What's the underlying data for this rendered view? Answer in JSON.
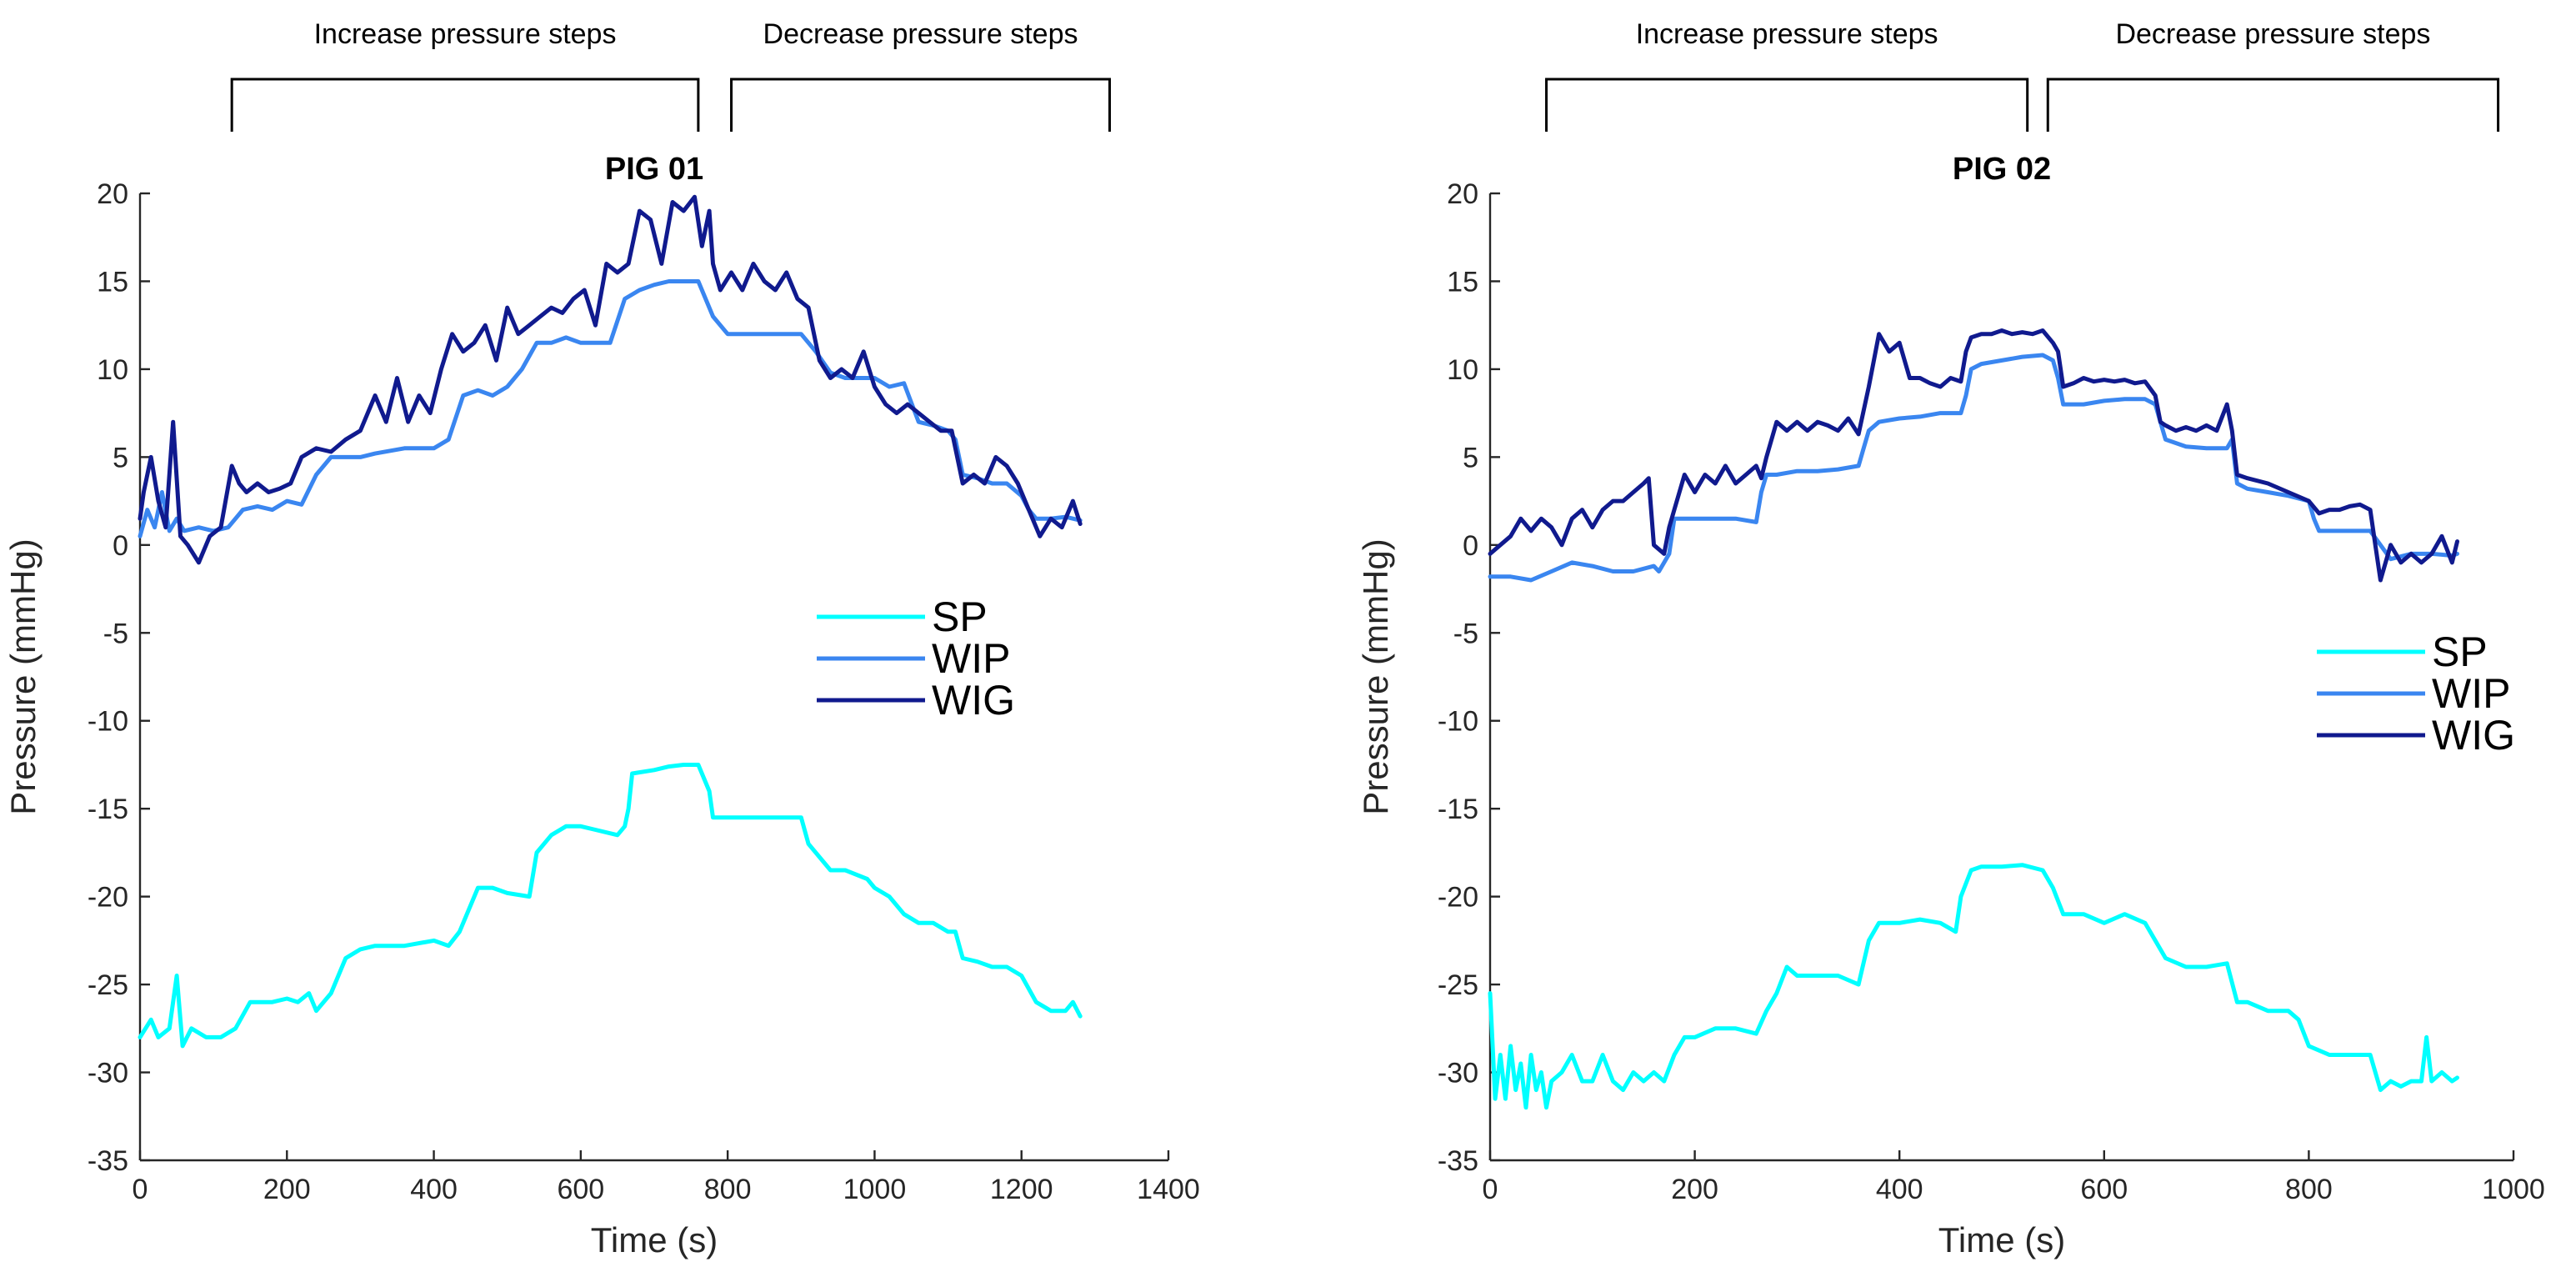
{
  "colors": {
    "SP": "#00FFFF",
    "WIP": "#3A86F0",
    "WIG": "#101A8E",
    "axis": "#262626"
  },
  "chart_data": [
    {
      "type": "line",
      "title": "PIG 01",
      "xlabel": "Time (s)",
      "ylabel": "Pressure (mmHg)",
      "xlim": [
        0,
        1400
      ],
      "ylim": [
        -35,
        20
      ],
      "xticks": [
        0,
        200,
        400,
        600,
        800,
        1000,
        1200,
        1400
      ],
      "yticks": [
        -35,
        -30,
        -25,
        -20,
        -15,
        -10,
        -5,
        0,
        5,
        10,
        15,
        20
      ],
      "xtick_labels": [
        "0",
        "200",
        "400",
        "600",
        "800",
        "1000",
        "1200",
        "1400"
      ],
      "ytick_labels": [
        "-35",
        "-30",
        "-25",
        "-20",
        "-15",
        "-10",
        "-5",
        "0",
        "5",
        "10",
        "15",
        "20"
      ],
      "brackets": [
        {
          "label": "Increase pressure steps",
          "start": 125,
          "end": 760
        },
        {
          "label": "Decrease pressure steps",
          "start": 805,
          "end": 1320
        }
      ],
      "legend": {
        "placement": "center-right",
        "entries": [
          "SP",
          "WIP",
          "WIG"
        ]
      },
      "series": [
        {
          "name": "SP",
          "x": [
            0,
            15,
            25,
            40,
            50,
            58,
            70,
            90,
            110,
            130,
            150,
            160,
            180,
            200,
            215,
            230,
            240,
            260,
            280,
            300,
            320,
            360,
            400,
            420,
            435,
            440,
            460,
            480,
            500,
            530,
            540,
            560,
            580,
            600,
            620,
            650,
            660,
            665,
            670,
            700,
            720,
            740,
            760,
            775,
            780,
            800,
            840,
            880,
            900,
            910,
            940,
            960,
            990,
            1000,
            1020,
            1040,
            1060,
            1080,
            1100,
            1110,
            1120,
            1140,
            1160,
            1180,
            1200,
            1220,
            1240,
            1260,
            1270,
            1280
          ],
          "y": [
            -28.0,
            -27.0,
            -28.0,
            -27.5,
            -24.5,
            -28.5,
            -27.5,
            -28.0,
            -28.0,
            -27.5,
            -26.0,
            -26.0,
            -26.0,
            -25.8,
            -26.0,
            -25.5,
            -26.5,
            -25.5,
            -23.5,
            -23.0,
            -22.8,
            -22.8,
            -22.5,
            -22.8,
            -22.0,
            -21.5,
            -19.5,
            -19.5,
            -19.8,
            -20.0,
            -17.5,
            -16.5,
            -16.0,
            -16.0,
            -16.2,
            -16.5,
            -16.0,
            -15.0,
            -13.0,
            -12.8,
            -12.6,
            -12.5,
            -12.5,
            -14.0,
            -15.5,
            -15.5,
            -15.5,
            -15.5,
            -15.5,
            -17.0,
            -18.5,
            -18.5,
            -19.0,
            -19.5,
            -20.0,
            -21.0,
            -21.5,
            -21.5,
            -22.0,
            -22.0,
            -23.5,
            -23.7,
            -24.0,
            -24.0,
            -24.5,
            -26.0,
            -26.5,
            -26.5,
            -26.0,
            -26.8
          ]
        },
        {
          "name": "WIP",
          "x": [
            0,
            10,
            20,
            30,
            40,
            50,
            60,
            80,
            100,
            120,
            140,
            160,
            180,
            200,
            220,
            240,
            260,
            280,
            300,
            320,
            360,
            400,
            420,
            440,
            460,
            480,
            500,
            520,
            540,
            560,
            580,
            600,
            640,
            660,
            680,
            700,
            720,
            760,
            780,
            800,
            840,
            900,
            920,
            940,
            960,
            1000,
            1020,
            1040,
            1060,
            1080,
            1100,
            1110,
            1120,
            1140,
            1160,
            1180,
            1200,
            1210,
            1220,
            1240,
            1260,
            1270,
            1280
          ],
          "y": [
            0.5,
            2.0,
            1.0,
            3.0,
            0.8,
            1.5,
            0.8,
            1.0,
            0.8,
            1.0,
            2.0,
            2.2,
            2.0,
            2.5,
            2.3,
            4.0,
            5.0,
            5.0,
            5.0,
            5.2,
            5.5,
            5.5,
            6.0,
            8.5,
            8.8,
            8.5,
            9.0,
            10.0,
            11.5,
            11.5,
            11.8,
            11.5,
            11.5,
            14.0,
            14.5,
            14.8,
            15.0,
            15.0,
            13.0,
            12.0,
            12.0,
            12.0,
            11.0,
            9.8,
            9.5,
            9.5,
            9.0,
            9.2,
            7.0,
            6.8,
            6.5,
            6.0,
            4.0,
            3.8,
            3.5,
            3.5,
            2.8,
            2.0,
            1.5,
            1.5,
            1.6,
            1.5,
            1.4
          ]
        },
        {
          "name": "WIG",
          "x": [
            0,
            5,
            15,
            25,
            35,
            45,
            55,
            65,
            80,
            95,
            110,
            125,
            135,
            145,
            160,
            175,
            190,
            205,
            220,
            240,
            260,
            280,
            300,
            320,
            335,
            350,
            365,
            380,
            395,
            410,
            425,
            440,
            455,
            470,
            485,
            500,
            515,
            530,
            545,
            560,
            575,
            590,
            605,
            620,
            635,
            650,
            665,
            680,
            695,
            710,
            725,
            740,
            755,
            765,
            775,
            780,
            790,
            805,
            820,
            835,
            850,
            865,
            880,
            895,
            910,
            925,
            940,
            955,
            970,
            985,
            1000,
            1015,
            1030,
            1045,
            1060,
            1075,
            1090,
            1105,
            1120,
            1135,
            1150,
            1165,
            1180,
            1195,
            1210,
            1225,
            1240,
            1255,
            1270,
            1280
          ],
          "y": [
            1.5,
            3.0,
            5.0,
            2.5,
            1.0,
            7.0,
            0.5,
            0.0,
            -1.0,
            0.5,
            1.0,
            4.5,
            3.5,
            3.0,
            3.5,
            3.0,
            3.2,
            3.5,
            5.0,
            5.5,
            5.3,
            6.0,
            6.5,
            8.5,
            7.0,
            9.5,
            7.0,
            8.5,
            7.5,
            10.0,
            12.0,
            11.0,
            11.5,
            12.5,
            10.5,
            13.5,
            12.0,
            12.5,
            13.0,
            13.5,
            13.2,
            14.0,
            14.5,
            12.5,
            16.0,
            15.5,
            16.0,
            19.0,
            18.5,
            16.0,
            19.5,
            19.0,
            19.8,
            17.0,
            19.0,
            16.0,
            14.5,
            15.5,
            14.5,
            16.0,
            15.0,
            14.5,
            15.5,
            14.0,
            13.5,
            10.5,
            9.5,
            10.0,
            9.5,
            11.0,
            9.0,
            8.0,
            7.5,
            8.0,
            7.5,
            7.0,
            6.5,
            6.5,
            3.5,
            4.0,
            3.5,
            5.0,
            4.5,
            3.5,
            2.0,
            0.5,
            1.5,
            1.0,
            2.5,
            1.2
          ]
        }
      ]
    },
    {
      "type": "line",
      "title": "PIG 02",
      "xlabel": "Time (s)",
      "ylabel": "Pressure (mmHg)",
      "xlim": [
        0,
        1000
      ],
      "ylim": [
        -35,
        20
      ],
      "xticks": [
        0,
        200,
        400,
        600,
        800,
        1000
      ],
      "yticks": [
        -35,
        -30,
        -25,
        -20,
        -15,
        -10,
        -5,
        0,
        5,
        10,
        15,
        20
      ],
      "xtick_labels": [
        "0",
        "200",
        "400",
        "600",
        "800",
        "1000"
      ],
      "ytick_labels": [
        "-35",
        "-30",
        "-25",
        "-20",
        "-15",
        "-10",
        "-5",
        "0",
        "5",
        "10",
        "15",
        "20"
      ],
      "brackets": [
        {
          "label": "Increase pressure steps",
          "start": 55,
          "end": 525
        },
        {
          "label": "Decrease pressure steps",
          "start": 545,
          "end": 985
        }
      ],
      "legend": {
        "placement": "right",
        "entries": [
          "SP",
          "WIP",
          "WIG"
        ]
      },
      "series": [
        {
          "name": "SP",
          "x": [
            0,
            5,
            10,
            15,
            20,
            25,
            30,
            35,
            40,
            45,
            50,
            55,
            60,
            70,
            80,
            90,
            100,
            110,
            120,
            130,
            140,
            150,
            160,
            170,
            180,
            190,
            200,
            220,
            240,
            260,
            270,
            280,
            290,
            300,
            320,
            340,
            360,
            370,
            380,
            400,
            420,
            440,
            455,
            460,
            470,
            480,
            500,
            520,
            540,
            550,
            560,
            580,
            600,
            620,
            640,
            650,
            660,
            680,
            700,
            720,
            730,
            740,
            760,
            780,
            790,
            800,
            820,
            840,
            850,
            860,
            870,
            880,
            890,
            900,
            910,
            915,
            920,
            930,
            940,
            945
          ],
          "y": [
            -25.5,
            -31.5,
            -29.0,
            -31.5,
            -28.5,
            -31.0,
            -29.5,
            -32.0,
            -29.0,
            -31.0,
            -30.0,
            -32.0,
            -30.5,
            -30.0,
            -29.0,
            -30.5,
            -30.5,
            -29.0,
            -30.5,
            -31.0,
            -30.0,
            -30.5,
            -30.0,
            -30.5,
            -29.0,
            -28.0,
            -28.0,
            -27.5,
            -27.5,
            -27.8,
            -26.5,
            -25.5,
            -24.0,
            -24.5,
            -24.5,
            -24.5,
            -25.0,
            -22.5,
            -21.5,
            -21.5,
            -21.3,
            -21.5,
            -22.0,
            -20.0,
            -18.5,
            -18.3,
            -18.3,
            -18.2,
            -18.5,
            -19.5,
            -21.0,
            -21.0,
            -21.5,
            -21.0,
            -21.5,
            -22.5,
            -23.5,
            -24.0,
            -24.0,
            -23.8,
            -26.0,
            -26.0,
            -26.5,
            -26.5,
            -27.0,
            -28.5,
            -29.0,
            -29.0,
            -29.0,
            -29.0,
            -31.0,
            -30.5,
            -30.8,
            -30.5,
            -30.5,
            -28.0,
            -30.5,
            -30.0,
            -30.5,
            -30.3
          ]
        },
        {
          "name": "WIP",
          "x": [
            0,
            20,
            40,
            60,
            80,
            100,
            120,
            140,
            160,
            165,
            170,
            175,
            180,
            200,
            220,
            240,
            260,
            265,
            270,
            280,
            300,
            320,
            340,
            360,
            365,
            370,
            380,
            400,
            420,
            440,
            460,
            465,
            470,
            480,
            500,
            520,
            540,
            550,
            555,
            560,
            580,
            600,
            620,
            640,
            650,
            655,
            660,
            680,
            700,
            720,
            725,
            730,
            740,
            760,
            780,
            800,
            805,
            810,
            820,
            840,
            860,
            880,
            900,
            920,
            940,
            945
          ],
          "y": [
            -1.8,
            -1.8,
            -2.0,
            -1.5,
            -1.0,
            -1.2,
            -1.5,
            -1.5,
            -1.2,
            -1.5,
            -1.0,
            -0.5,
            1.5,
            1.5,
            1.5,
            1.5,
            1.3,
            3.0,
            4.0,
            4.0,
            4.2,
            4.2,
            4.3,
            4.5,
            5.5,
            6.5,
            7.0,
            7.2,
            7.3,
            7.5,
            7.5,
            8.5,
            10.0,
            10.3,
            10.5,
            10.7,
            10.8,
            10.5,
            9.5,
            8.0,
            8.0,
            8.2,
            8.3,
            8.3,
            8.0,
            7.0,
            6.0,
            5.6,
            5.5,
            5.5,
            6.0,
            3.5,
            3.2,
            3.0,
            2.8,
            2.5,
            1.5,
            0.8,
            0.8,
            0.8,
            0.8,
            -0.8,
            -0.5,
            -0.5,
            -0.6,
            -0.5
          ]
        },
        {
          "name": "WIG",
          "x": [
            0,
            10,
            20,
            30,
            40,
            50,
            60,
            70,
            80,
            90,
            100,
            110,
            120,
            130,
            140,
            150,
            155,
            160,
            170,
            175,
            180,
            190,
            200,
            210,
            220,
            230,
            240,
            250,
            260,
            265,
            270,
            280,
            290,
            300,
            310,
            320,
            330,
            340,
            350,
            360,
            370,
            375,
            380,
            390,
            400,
            410,
            420,
            430,
            440,
            450,
            460,
            465,
            470,
            480,
            490,
            500,
            510,
            520,
            530,
            540,
            550,
            555,
            560,
            570,
            580,
            590,
            600,
            610,
            620,
            630,
            640,
            650,
            655,
            660,
            670,
            680,
            690,
            700,
            710,
            720,
            725,
            730,
            740,
            760,
            780,
            800,
            810,
            820,
            830,
            840,
            850,
            860,
            865,
            870,
            880,
            890,
            900,
            910,
            920,
            930,
            940,
            945
          ],
          "y": [
            -0.5,
            0.0,
            0.5,
            1.5,
            0.8,
            1.5,
            1.0,
            0.0,
            1.5,
            2.0,
            1.0,
            2.0,
            2.5,
            2.5,
            3.0,
            3.5,
            3.8,
            0.0,
            -0.5,
            1.0,
            2.0,
            4.0,
            3.0,
            4.0,
            3.5,
            4.5,
            3.5,
            4.0,
            4.5,
            3.8,
            5.0,
            7.0,
            6.5,
            7.0,
            6.5,
            7.0,
            6.8,
            6.5,
            7.2,
            6.3,
            9.0,
            10.5,
            12.0,
            11.0,
            11.5,
            9.5,
            9.5,
            9.2,
            9.0,
            9.5,
            9.3,
            11.0,
            11.8,
            12.0,
            12.0,
            12.2,
            12.0,
            12.1,
            12.0,
            12.2,
            11.5,
            11.0,
            9.0,
            9.2,
            9.5,
            9.3,
            9.4,
            9.3,
            9.4,
            9.2,
            9.3,
            8.5,
            7.0,
            6.8,
            6.5,
            6.7,
            6.5,
            6.8,
            6.5,
            8.0,
            6.5,
            4.0,
            3.8,
            3.5,
            3.0,
            2.5,
            1.8,
            2.0,
            2.0,
            2.2,
            2.3,
            2.0,
            0.0,
            -2.0,
            0.0,
            -1.0,
            -0.5,
            -1.0,
            -0.5,
            0.5,
            -1.0,
            0.2
          ]
        }
      ]
    }
  ]
}
